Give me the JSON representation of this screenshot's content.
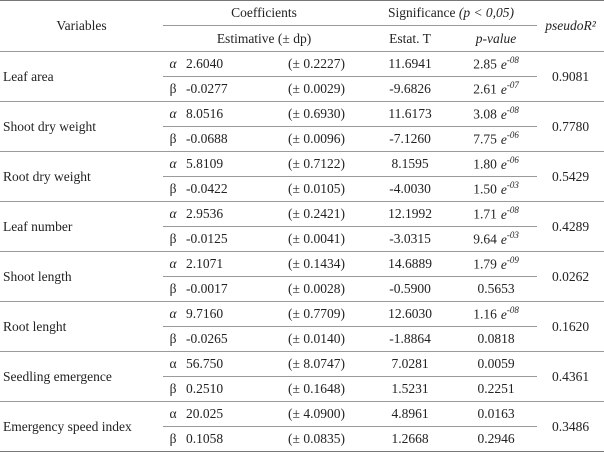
{
  "table": {
    "header": {
      "variables": "Variables",
      "coefficients": "Coefficients",
      "significance": "Significance",
      "significance_condition": "(p < 0,05)",
      "pseudo": "pseudoR²",
      "estimative": "Estimative (± dp)",
      "stat": "Estat. T",
      "pvalue": "p-value"
    },
    "groups": [
      {
        "variable": "Leaf area",
        "pseudo": "0.9081",
        "rows": [
          {
            "coef": "α",
            "estimate": "2.6040",
            "dp": "(± 0.2227)",
            "t": "11.6941",
            "p": {
              "mantissa": "2.85",
              "base": "e",
              "exponent": "-08"
            }
          },
          {
            "coef": "β",
            "estimate": "-0.0277",
            "dp": "(± 0.0029)",
            "t": "-9.6826",
            "p": {
              "mantissa": "2.61",
              "base": "e",
              "exponent": "-07"
            }
          }
        ]
      },
      {
        "variable": "Shoot dry weight",
        "pseudo": "0.7780",
        "rows": [
          {
            "coef": "α",
            "estimate": "8.0516",
            "dp": "(± 0.6930)",
            "t": "11.6173",
            "p": {
              "mantissa": "3.08",
              "base": "e",
              "exponent": "-08"
            }
          },
          {
            "coef": "β",
            "estimate": "-0.0688",
            "dp": "(± 0.0096)",
            "t": "-7.1260",
            "p": {
              "mantissa": "7.75",
              "base": "e",
              "exponent": "-06"
            }
          }
        ]
      },
      {
        "variable": "Root dry weight",
        "pseudo": "0.5429",
        "rows": [
          {
            "coef": "α",
            "estimate": "5.8109",
            "dp": "(± 0.7122)",
            "t": "8.1595",
            "p": {
              "mantissa": "1.80",
              "base": "e",
              "exponent": "-06"
            }
          },
          {
            "coef": "β",
            "estimate": "-0.0422",
            "dp": "(± 0.0105)",
            "t": "-4.0030",
            "p": {
              "mantissa": "1.50",
              "base": "e",
              "exponent": "-03"
            }
          }
        ]
      },
      {
        "variable": "Leaf number",
        "pseudo": "0.4289",
        "rows": [
          {
            "coef": "α",
            "estimate": "2.9536",
            "dp": "(± 0.2421)",
            "t": "12.1992",
            "p": {
              "mantissa": "1.71",
              "base": "e",
              "exponent": "-08"
            }
          },
          {
            "coef": "β",
            "estimate": "-0.0125",
            "dp": "(± 0.0041)",
            "t": "-3.0315",
            "p": {
              "mantissa": "9.64",
              "base": "e",
              "exponent": "-03"
            }
          }
        ]
      },
      {
        "variable": "Shoot length",
        "pseudo": "0.0262",
        "rows": [
          {
            "coef": "α",
            "estimate": "2.1071",
            "dp": "(± 0.1434)",
            "t": "14.6889",
            "p": {
              "mantissa": "1.79",
              "base": "e",
              "exponent": "-09"
            }
          },
          {
            "coef": "β",
            "estimate": "-0.0017",
            "dp": "(± 0.0028)",
            "t": "-0.5900",
            "p": "0.5653"
          }
        ]
      },
      {
        "variable": "Root lenght",
        "pseudo": "0.1620",
        "rows": [
          {
            "coef": "α",
            "estimate": "9.7160",
            "dp": "(± 0.7709)",
            "t": "12.6030",
            "p": {
              "mantissa": "1.16",
              "base": "e",
              "exponent": "-08"
            }
          },
          {
            "coef": "β",
            "estimate": "-0.0265",
            "dp": "(± 0.0140)",
            "t": "-1.8864",
            "p": "0.0818"
          }
        ]
      },
      {
        "variable": "Seedling emergence",
        "pseudo": "0.4361",
        "rows": [
          {
            "coef": "α",
            "estimate": "56.750",
            "dp": "(± 8.0747)",
            "t": "7.0281",
            "p": "0.0059"
          },
          {
            "coef": "β",
            "estimate": "0.2510",
            "dp": "(± 0.1648)",
            "t": "1.5231",
            "p": "0.2251"
          }
        ]
      },
      {
        "variable": "Emergency speed index",
        "pseudo": "0.3486",
        "rows": [
          {
            "coef": "α",
            "estimate": "20.025",
            "dp": "(± 4.0900)",
            "t": "4.8961",
            "p": "0.0163"
          },
          {
            "coef": "β",
            "estimate": "0.1058",
            "dp": "(± 0.0835)",
            "t": "1.2668",
            "p": "0.2946"
          }
        ]
      }
    ]
  }
}
